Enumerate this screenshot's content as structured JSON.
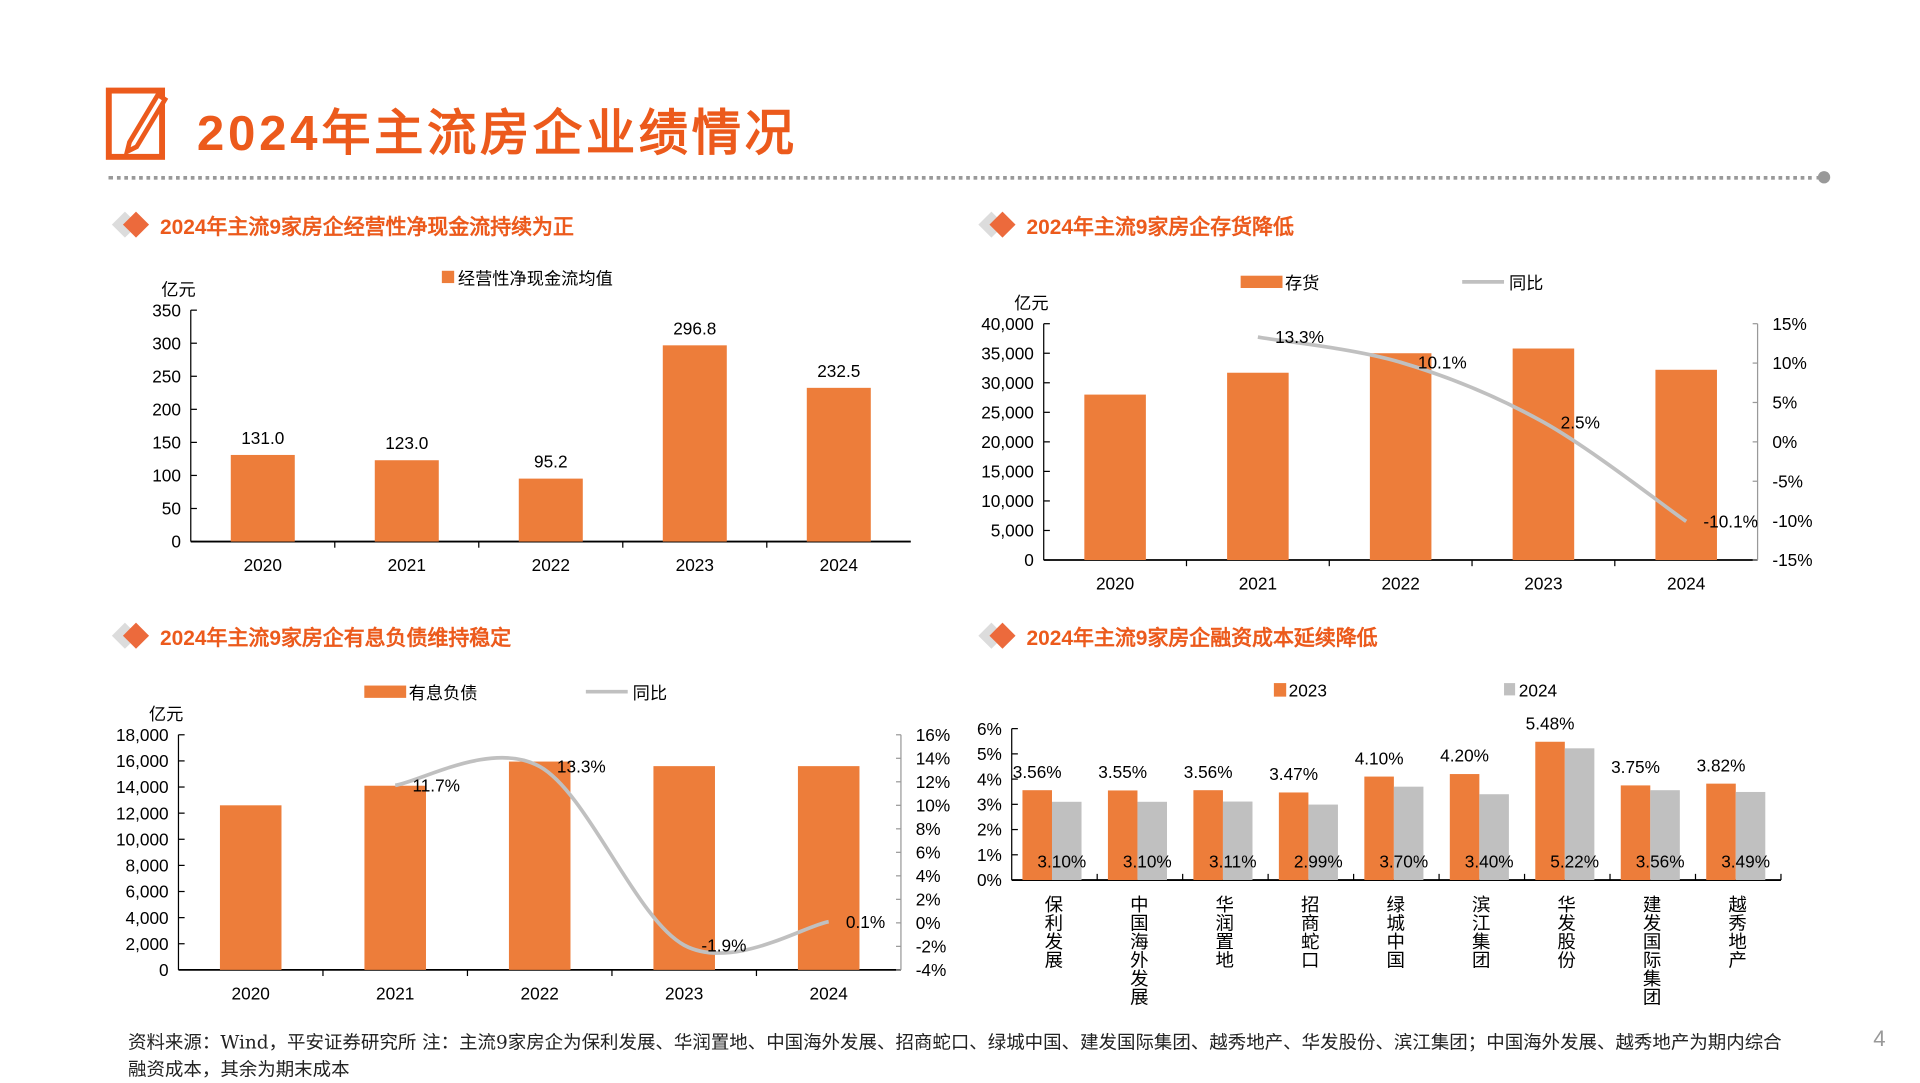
{
  "page": {
    "title": "2024年主流房企业绩情况",
    "page_number": "4",
    "footnote": "资料来源：Wind，平安证券研究所 注：主流9家房企为保利发展、华润置地、中国海外发展、招商蛇口、绿城中国、建发国际集团、越秀地产、华发股份、滨江集团；中国海外发展、越秀地产为期内综合融资成本，其余为期末成本"
  },
  "colors": {
    "accent": "#ec5a1c",
    "bar": "#ed7d3a",
    "line": "#c0c0c0",
    "gray_bar": "#c0c0c0"
  },
  "chart_data": [
    {
      "type": "bar",
      "title": "2024年主流9家房企经营性净现金流持续为正",
      "ylabel": "亿元",
      "categories": [
        "2020",
        "2021",
        "2022",
        "2023",
        "2024"
      ],
      "series": [
        {
          "name": "经营性净现金流均值",
          "values": [
            131.0,
            123.0,
            95.2,
            296.8,
            232.5
          ]
        }
      ],
      "data_labels": [
        "131.0",
        "123.0",
        "95.2",
        "296.8",
        "232.5"
      ],
      "ylim": [
        0,
        350
      ],
      "yticks": [
        "0",
        "50",
        "100",
        "150",
        "200",
        "250",
        "300",
        "350"
      ],
      "legend": "top",
      "grid": false
    },
    {
      "type": "bar+line",
      "title": "2024年主流9家房企存货降低",
      "ylabel": "亿元",
      "categories": [
        "2020",
        "2021",
        "2022",
        "2023",
        "2024"
      ],
      "series": [
        {
          "name": "存货",
          "values": [
            28000,
            31700,
            35000,
            35800,
            32200
          ]
        },
        {
          "name": "同比",
          "axis": "right",
          "values": [
            null,
            13.3,
            10.1,
            2.5,
            -10.1
          ],
          "labels": [
            "",
            "13.3%",
            "10.1%",
            "2.5%",
            "-10.1%"
          ]
        }
      ],
      "ylim": [
        0,
        40000
      ],
      "yticks": [
        "0",
        "5,000",
        "10,000",
        "15,000",
        "20,000",
        "25,000",
        "30,000",
        "35,000",
        "40,000"
      ],
      "y2lim": [
        -15,
        15
      ],
      "y2ticks": [
        "-15%",
        "-10%",
        "-5%",
        "0%",
        "5%",
        "10%",
        "15%"
      ],
      "legend": "top",
      "grid": false
    },
    {
      "type": "bar+line",
      "title": "2024年主流9家房企有息负债维持稳定",
      "ylabel": "亿元",
      "categories": [
        "2020",
        "2021",
        "2022",
        "2023",
        "2024"
      ],
      "series": [
        {
          "name": "有息负债",
          "values": [
            12600,
            14100,
            15950,
            15600,
            15600
          ]
        },
        {
          "name": "同比",
          "axis": "right",
          "values": [
            null,
            11.7,
            13.3,
            -1.9,
            0.1
          ],
          "labels": [
            "",
            "11.7%",
            "13.3%",
            "-1.9%",
            "0.1%"
          ]
        }
      ],
      "ylim": [
        0,
        18000
      ],
      "yticks": [
        "0",
        "2,000",
        "4,000",
        "6,000",
        "8,000",
        "10,000",
        "12,000",
        "14,000",
        "16,000",
        "18,000"
      ],
      "y2lim": [
        -4,
        16
      ],
      "y2ticks": [
        "-4%",
        "-2%",
        "0%",
        "2%",
        "4%",
        "6%",
        "8%",
        "10%",
        "12%",
        "14%",
        "16%"
      ],
      "legend": "top",
      "grid": false
    },
    {
      "type": "grouped-bar",
      "title": "2024年主流9家房企融资成本延续降低",
      "categories": [
        "保利发展",
        "中国海外发展",
        "华润置地",
        "招商蛇口",
        "绿城中国",
        "滨江集团",
        "华发股份",
        "建发国际集团",
        "越秀地产"
      ],
      "series": [
        {
          "name": "2023",
          "values": [
            3.56,
            3.55,
            3.56,
            3.47,
            4.1,
            4.2,
            5.48,
            3.75,
            3.82
          ],
          "labels": [
            "3.56%",
            "3.55%",
            "3.56%",
            "3.47%",
            "4.10%",
            "4.20%",
            "5.48%",
            "3.75%",
            "3.82%"
          ]
        },
        {
          "name": "2024",
          "values": [
            3.1,
            3.1,
            3.11,
            2.99,
            3.7,
            3.4,
            5.22,
            3.56,
            3.49
          ],
          "labels": [
            "3.10%",
            "3.10%",
            "3.11%",
            "2.99%",
            "3.70%",
            "3.40%",
            "5.22%",
            "3.56%",
            "3.49%"
          ]
        }
      ],
      "ylim": [
        0,
        6
      ],
      "yticks": [
        "0%",
        "1%",
        "2%",
        "3%",
        "4%",
        "5%",
        "6%"
      ],
      "legend": "top",
      "grid": false
    }
  ]
}
